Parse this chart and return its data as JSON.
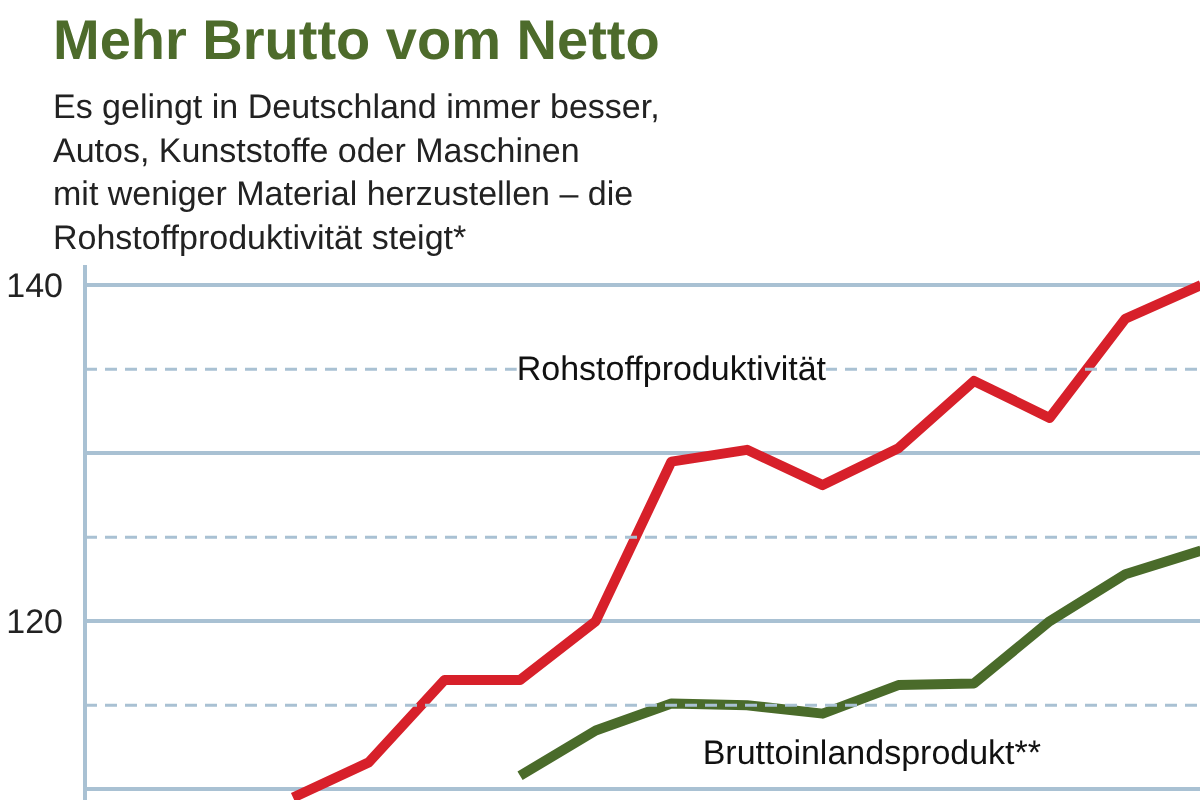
{
  "chart_data": {
    "type": "line",
    "title": "Mehr Brutto vom Netto",
    "subtitle": "Es gelingt in Deutschland immer besser,\nAutos, Kunststoffe oder Maschinen\nmit weniger Material herzustellen – die\nRohstoffproduktivität steigt*",
    "categories": [
      null,
      null,
      null,
      null,
      null,
      null,
      null,
      null,
      null,
      null,
      null,
      null,
      null,
      null,
      null
    ],
    "series": [
      {
        "name": "Rohstoffproduktivität",
        "color": "#d7202a",
        "values": [
          null,
          null,
          109.5,
          111.6,
          116.5,
          116.5,
          120,
          129.5,
          130.2,
          128.1,
          130.3,
          134.3,
          132.1,
          138,
          140
        ]
      },
      {
        "name": "Bruttoinlandsprodukt**",
        "color": "#4a6b2a",
        "values": [
          null,
          null,
          null,
          null,
          null,
          110.8,
          113.5,
          115.1,
          115,
          114.5,
          116.2,
          116.3,
          120,
          122.8,
          124.2
        ]
      }
    ],
    "ylim": [
      109.3,
      141.2
    ],
    "yticks": [
      {
        "value": 110,
        "label": null
      },
      120,
      {
        "value": 130,
        "label": null
      },
      140
    ],
    "ref_lines": [
      {
        "axis": "y",
        "value": 115,
        "line_style": "dashed"
      },
      {
        "axis": "y",
        "value": 125,
        "line_style": "dashed"
      },
      {
        "axis": "y",
        "value": 135,
        "line_style": "dashed"
      }
    ],
    "grid": "y",
    "tick_labels": "y",
    "line_style": "solid",
    "marker": "none"
  }
}
